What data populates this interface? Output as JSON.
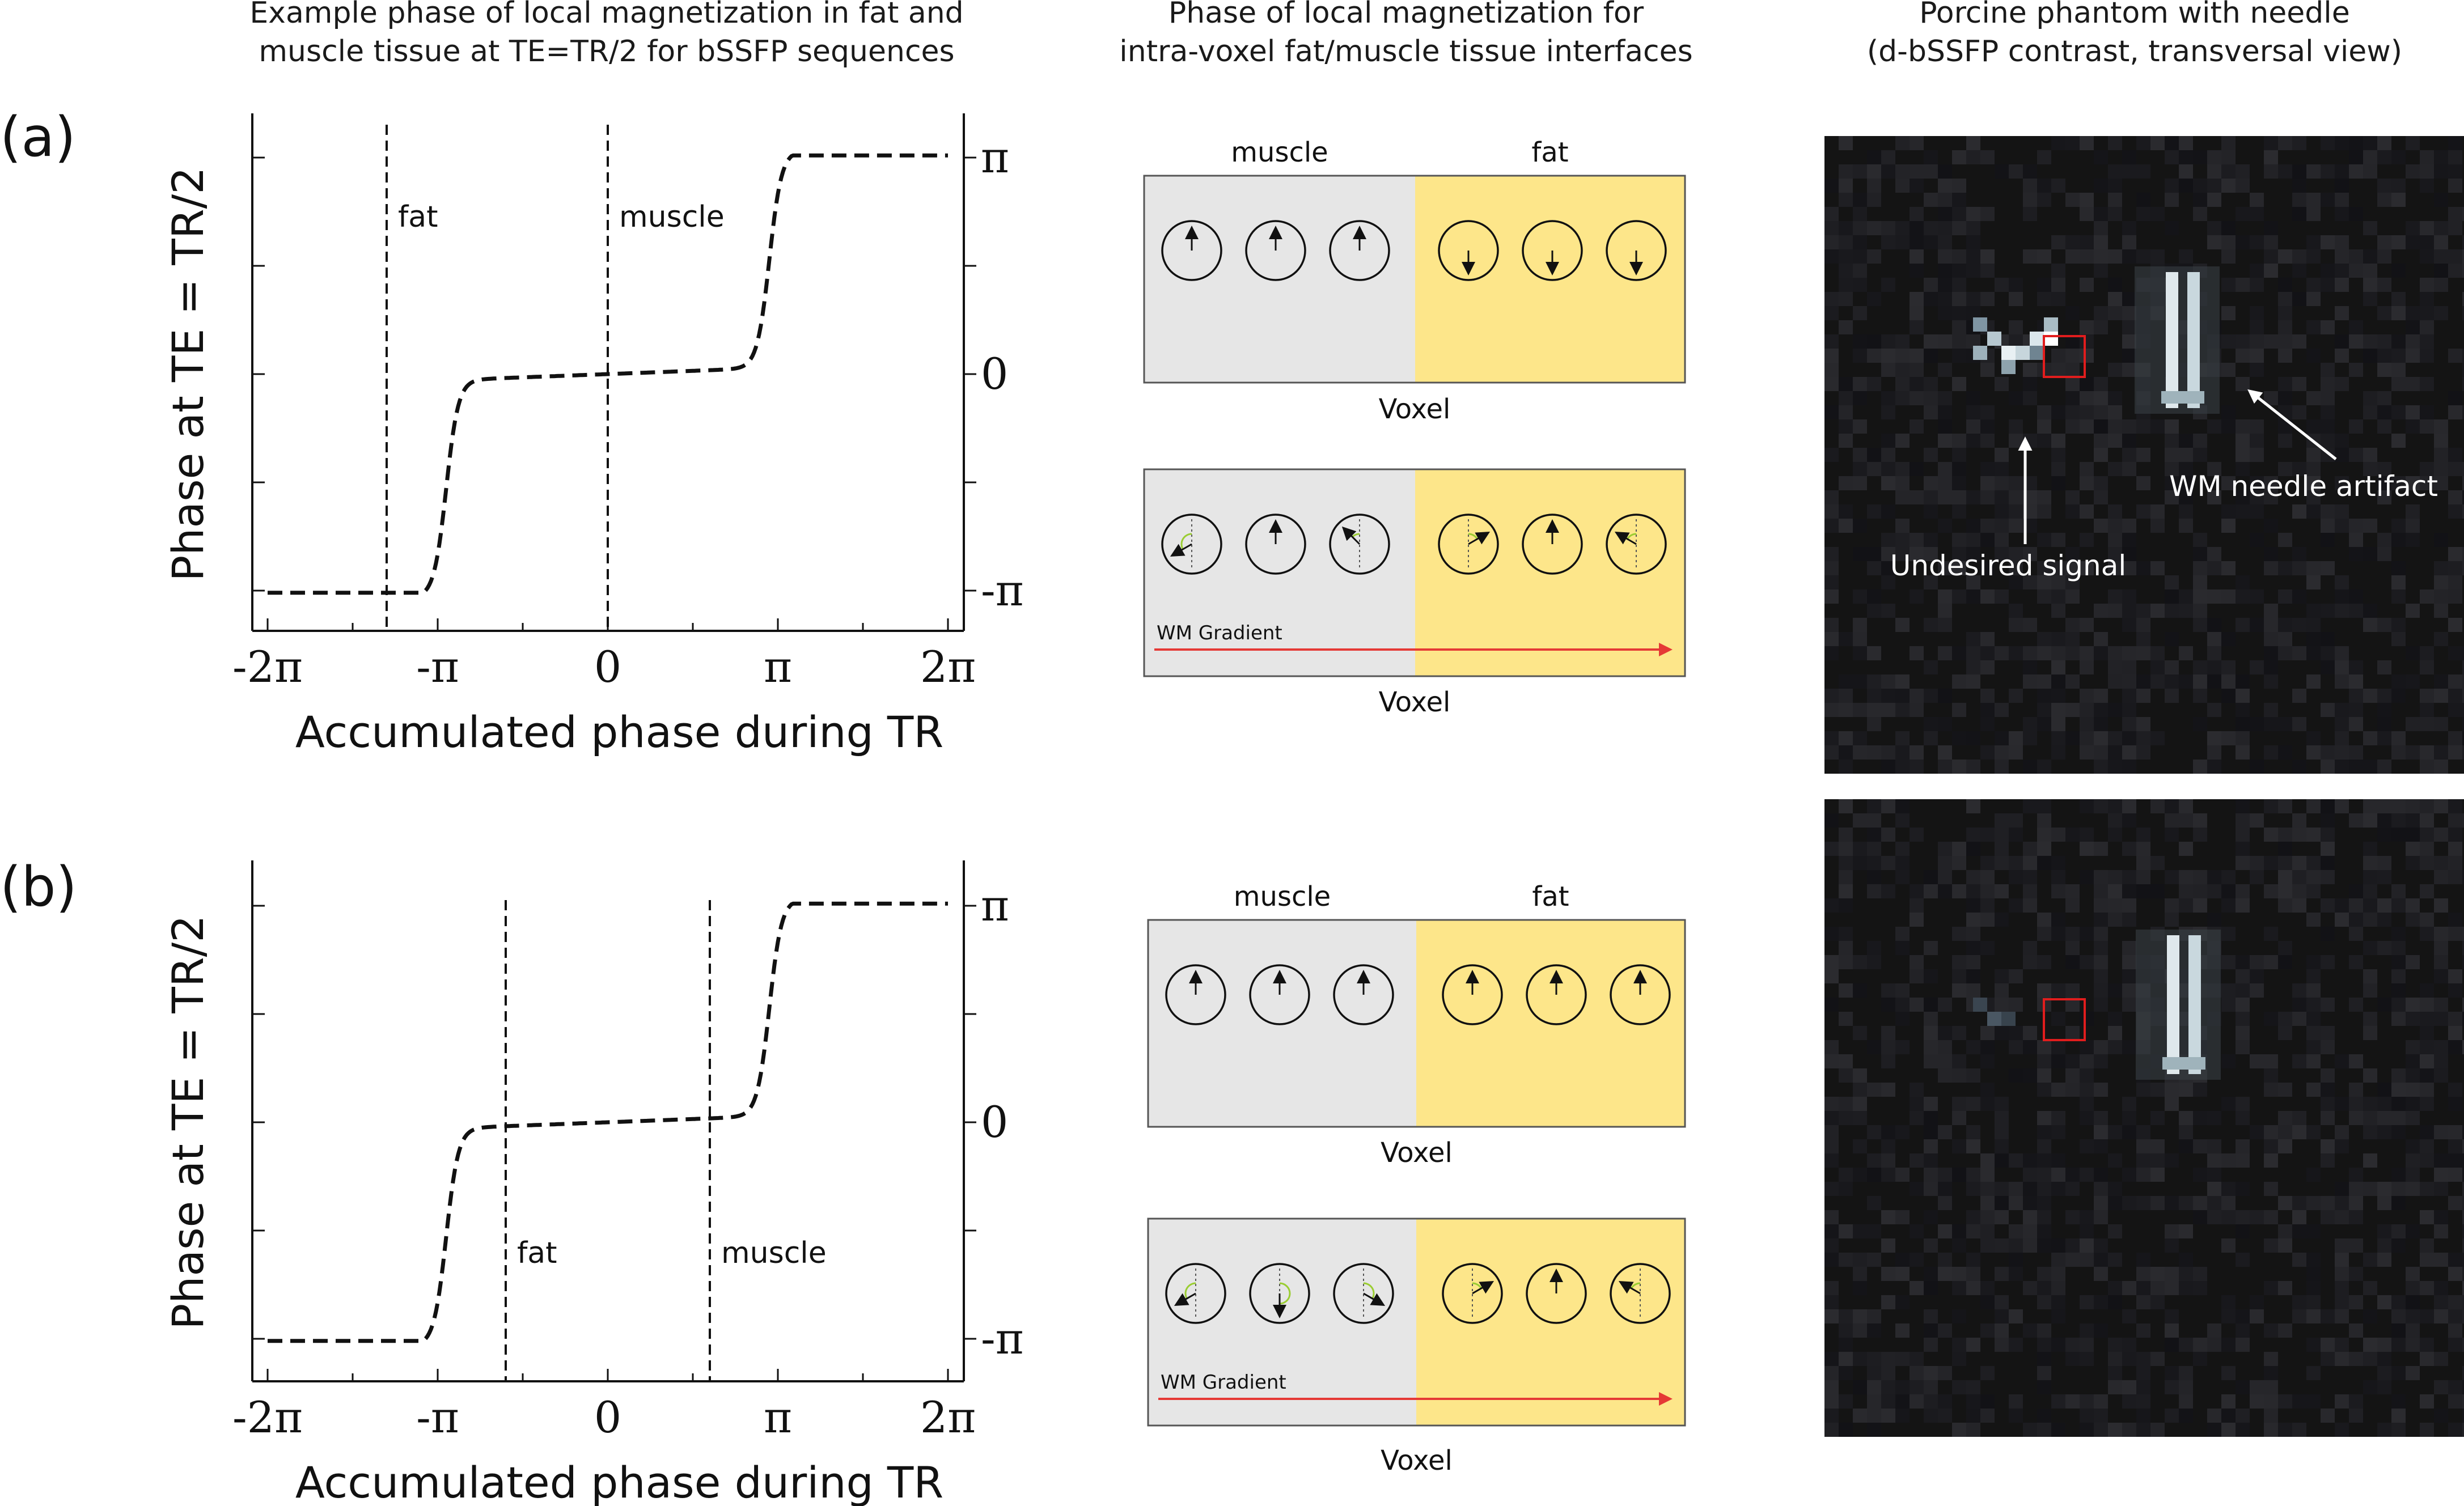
{
  "titles": {
    "col1": [
      "Example phase of local magnetization in fat and",
      "muscle tissue at TE=TR/2 for bSSFP sequences"
    ],
    "col2": [
      "Phase of local magnetization for",
      "intra-voxel fat/muscle tissue interfaces"
    ],
    "col3": [
      "Porcine phantom with needle",
      "(d-bSSFP contrast, transversal view)"
    ]
  },
  "panels": [
    {
      "label": "(a)",
      "plot": {
        "y_label": "Phase at TE = TR/2",
        "x_label": "Accumulated phase during TR",
        "x_ticks": [
          "-2π",
          "-π",
          "0",
          "π",
          "2π"
        ],
        "y_ticks": [
          "π",
          "0",
          "-π"
        ],
        "markers": [
          {
            "label": "fat",
            "x_over_pi": -1.3
          },
          {
            "label": "muscle",
            "x_over_pi": 0.0
          }
        ]
      },
      "voxels": {
        "header_left": "muscle",
        "header_right": "fat",
        "voxel_label_top": "Voxel",
        "voxel_label_bottom": "Voxel",
        "gradient_label": "WM Gradient",
        "top_arrow_angles_deg": [
          0,
          0,
          0,
          180,
          180,
          180
        ],
        "bottom_arrow_angles_deg": [
          -120,
          0,
          -45,
          60,
          0,
          -60
        ]
      },
      "image": {
        "annotations": [
          "Undesired signal",
          "WM needle artifact"
        ]
      }
    },
    {
      "label": "(b)",
      "plot": {
        "y_label": "Phase at TE = TR/2",
        "x_label": "Accumulated phase during TR",
        "x_ticks": [
          "-2π",
          "-π",
          "0",
          "π",
          "2π"
        ],
        "y_ticks": [
          "π",
          "0",
          "-π"
        ],
        "markers": [
          {
            "label": "fat",
            "x_over_pi": -0.6
          },
          {
            "label": "muscle",
            "x_over_pi": 0.6
          }
        ]
      },
      "voxels": {
        "header_left": "muscle",
        "header_right": "fat",
        "voxel_label_top": "Voxel",
        "voxel_label_bottom": "Voxel",
        "gradient_label": "WM Gradient",
        "top_arrow_angles_deg": [
          0,
          0,
          0,
          0,
          0,
          0
        ],
        "bottom_arrow_angles_deg": [
          -120,
          180,
          120,
          60,
          0,
          -60
        ]
      },
      "image": {
        "annotations": []
      }
    }
  ],
  "colors": {
    "muscle_bg": "#e6e6e6",
    "fat_bg": "#fde68a",
    "gradient_arrow": "#e53935",
    "roi_box": "#e11d1d",
    "image_bg": "#141414"
  }
}
